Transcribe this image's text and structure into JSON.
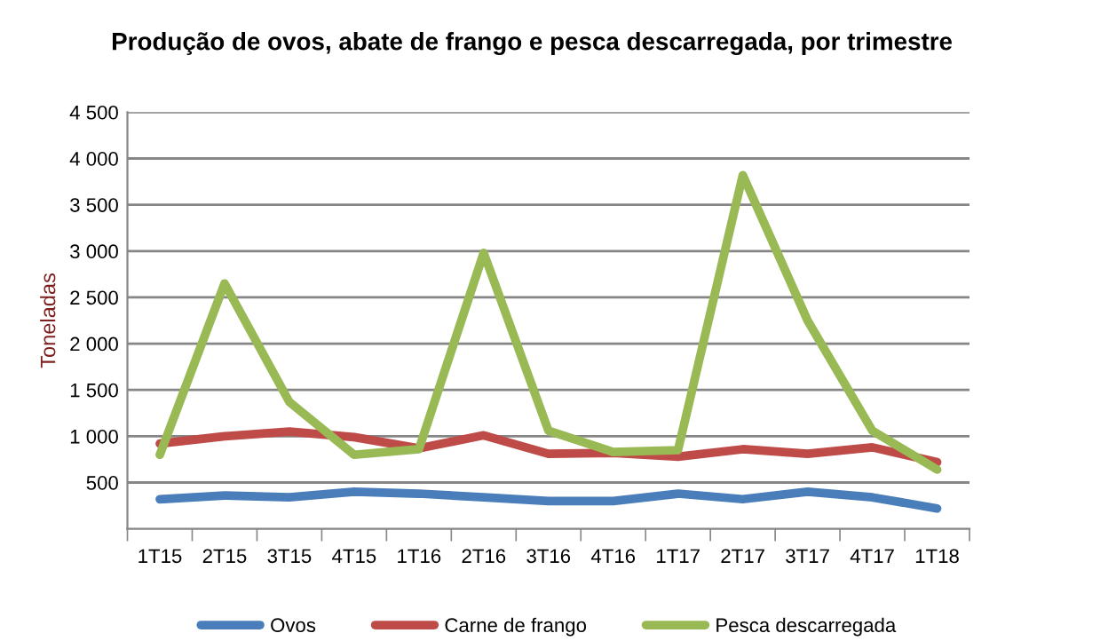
{
  "chart_data": {
    "type": "line",
    "title": "Produção de ovos, abate de frango e pesca descarregada, por trimestre",
    "ylabel": "Toneladas",
    "categories": [
      "1T15",
      "2T15",
      "3T15",
      "4T15",
      "1T16",
      "2T16",
      "3T16",
      "4T16",
      "1T17",
      "2T17",
      "3T17",
      "4T17",
      "1T18"
    ],
    "series": [
      {
        "name": "Ovos",
        "color": "#4a7ebb",
        "values": [
          320,
          360,
          340,
          400,
          380,
          340,
          300,
          300,
          380,
          320,
          400,
          340,
          220
        ]
      },
      {
        "name": "Carne de frango",
        "color": "#be4b48",
        "values": [
          920,
          1000,
          1050,
          990,
          870,
          1010,
          810,
          820,
          780,
          860,
          810,
          880,
          720
        ]
      },
      {
        "name": "Pesca descarregada",
        "color": "#98b954",
        "values": [
          800,
          2650,
          1370,
          800,
          860,
          2980,
          1060,
          830,
          850,
          3820,
          2250,
          1060,
          640
        ]
      }
    ],
    "ylim": [
      0,
      4500
    ],
    "yticks": [
      {
        "value": 500,
        "label": "500"
      },
      {
        "value": 1000,
        "label": "1 000"
      },
      {
        "value": 1500,
        "label": "1 500"
      },
      {
        "value": 2000,
        "label": "2 000"
      },
      {
        "value": 2500,
        "label": "2 500"
      },
      {
        "value": 3000,
        "label": "3 000"
      },
      {
        "value": 3500,
        "label": "3 500"
      },
      {
        "value": 4000,
        "label": "4 000"
      },
      {
        "value": 4500,
        "label": "4 500"
      }
    ],
    "grid": "y",
    "legend": "bottom",
    "marker": "none",
    "line_style": "solid"
  }
}
